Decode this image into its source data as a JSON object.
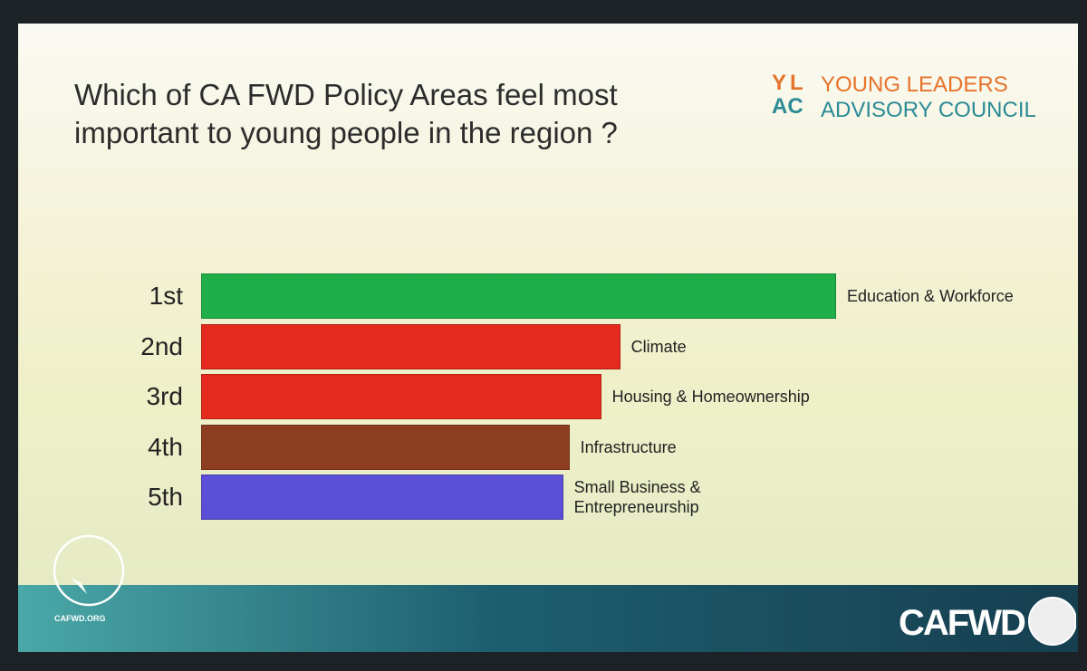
{
  "chart_data": {
    "type": "bar",
    "orientation": "horizontal",
    "title": "Which of CA FWD Policy Areas feel most important to young people in the region ?",
    "categories": [
      "1st",
      "2nd",
      "3rd",
      "4th",
      "5th"
    ],
    "bar_labels": [
      "Education & Workforce",
      "Climate",
      "Housing & Homeownership",
      "Infrastructure",
      "Small Business & Entrepreneurship"
    ],
    "values": [
      100,
      66,
      63,
      58,
      57
    ],
    "colors": [
      "#1fae4a",
      "#e32a1c",
      "#e32a1c",
      "#8e3e20",
      "#5a4fd6"
    ],
    "xlim": [
      0,
      100
    ]
  },
  "branding": {
    "logo_top": "YL",
    "logo_bottom": "AC",
    "org_line1": "YOUNG LEADERS",
    "org_line2": "ADVISORY COUNCIL",
    "site": "CAFWD.ORG",
    "footer_logo": "CAFWD"
  }
}
